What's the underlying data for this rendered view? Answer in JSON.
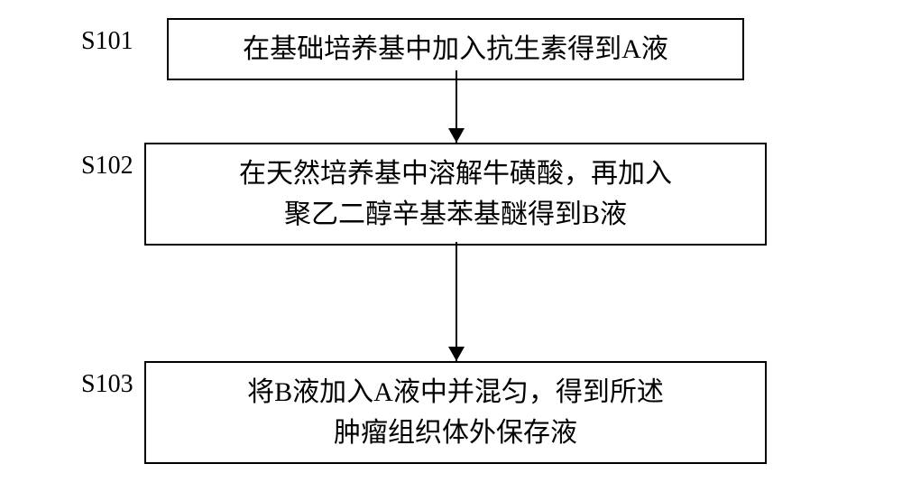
{
  "flowchart": {
    "type": "flowchart",
    "background_color": "#ffffff",
    "box_border_color": "#000000",
    "box_border_width": 2,
    "arrow_color": "#000000",
    "text_color": "#000000",
    "label_fontsize": 28,
    "text_fontsize": 30,
    "font_family": "SimSun",
    "steps": [
      {
        "id": "S101",
        "label": "S101",
        "text": "在基础培养基中加入抗生素得到A液"
      },
      {
        "id": "S102",
        "label": "S102",
        "text": "在天然培养基中溶解牛磺酸，再加入\n聚乙二醇辛基苯基醚得到B液"
      },
      {
        "id": "S103",
        "label": "S103",
        "text": "将B液加入A液中并混匀，得到所述\n肿瘤组织体外保存液"
      }
    ],
    "edges": [
      {
        "from": "S101",
        "to": "S102"
      },
      {
        "from": "S102",
        "to": "S103"
      }
    ]
  }
}
